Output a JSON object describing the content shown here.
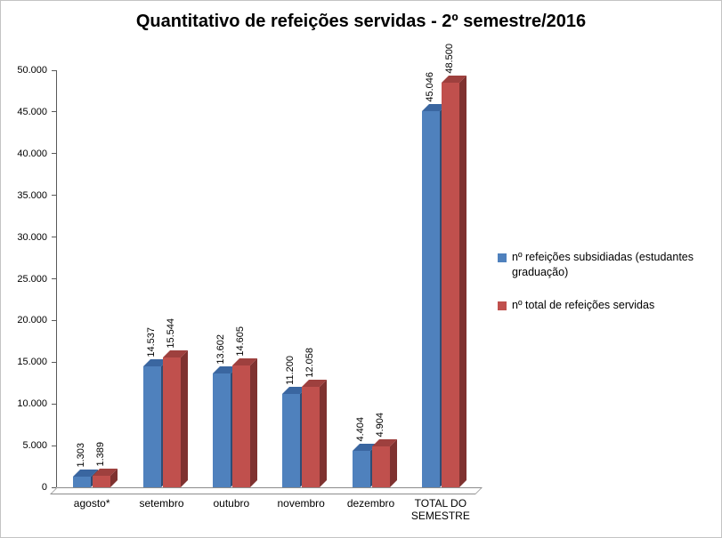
{
  "chart_data": {
    "type": "bar",
    "style": "3d-clustered-column",
    "title": "Quantitativo de refeições servidas - 2º semestre/2016",
    "categories": [
      "agosto*",
      "setembro",
      "outubro",
      "novembro",
      "dezembro",
      "TOTAL DO SEMESTRE"
    ],
    "series": [
      {
        "name": "nº refeições subsidiadas (estudantes graduação)",
        "color": "#4F81BD",
        "color_side": "#2E4D75",
        "color_top": "#3A66A0",
        "values": [
          1303,
          14537,
          13602,
          11200,
          4404,
          45046
        ],
        "labels": [
          "1.303",
          "14.537",
          "13.602",
          "11.200",
          "4.404",
          "45.046"
        ]
      },
      {
        "name": "nº total de refeições servidas",
        "color": "#C0504D",
        "color_side": "#7F3230",
        "color_top": "#9E403E",
        "values": [
          1389,
          15544,
          14605,
          12058,
          4904,
          48500
        ],
        "labels": [
          "1.389",
          "15.544",
          "14.605",
          "12.058",
          "4.904",
          "48.500"
        ]
      }
    ],
    "ylim": [
      0,
      50000
    ],
    "ytick_step": 5000,
    "ytick_labels": [
      "0",
      "5.000",
      "10.000",
      "15.000",
      "20.000",
      "25.000",
      "30.000",
      "35.000",
      "40.000",
      "45.000",
      "50.000"
    ],
    "legend_position": "right",
    "grid": false
  }
}
